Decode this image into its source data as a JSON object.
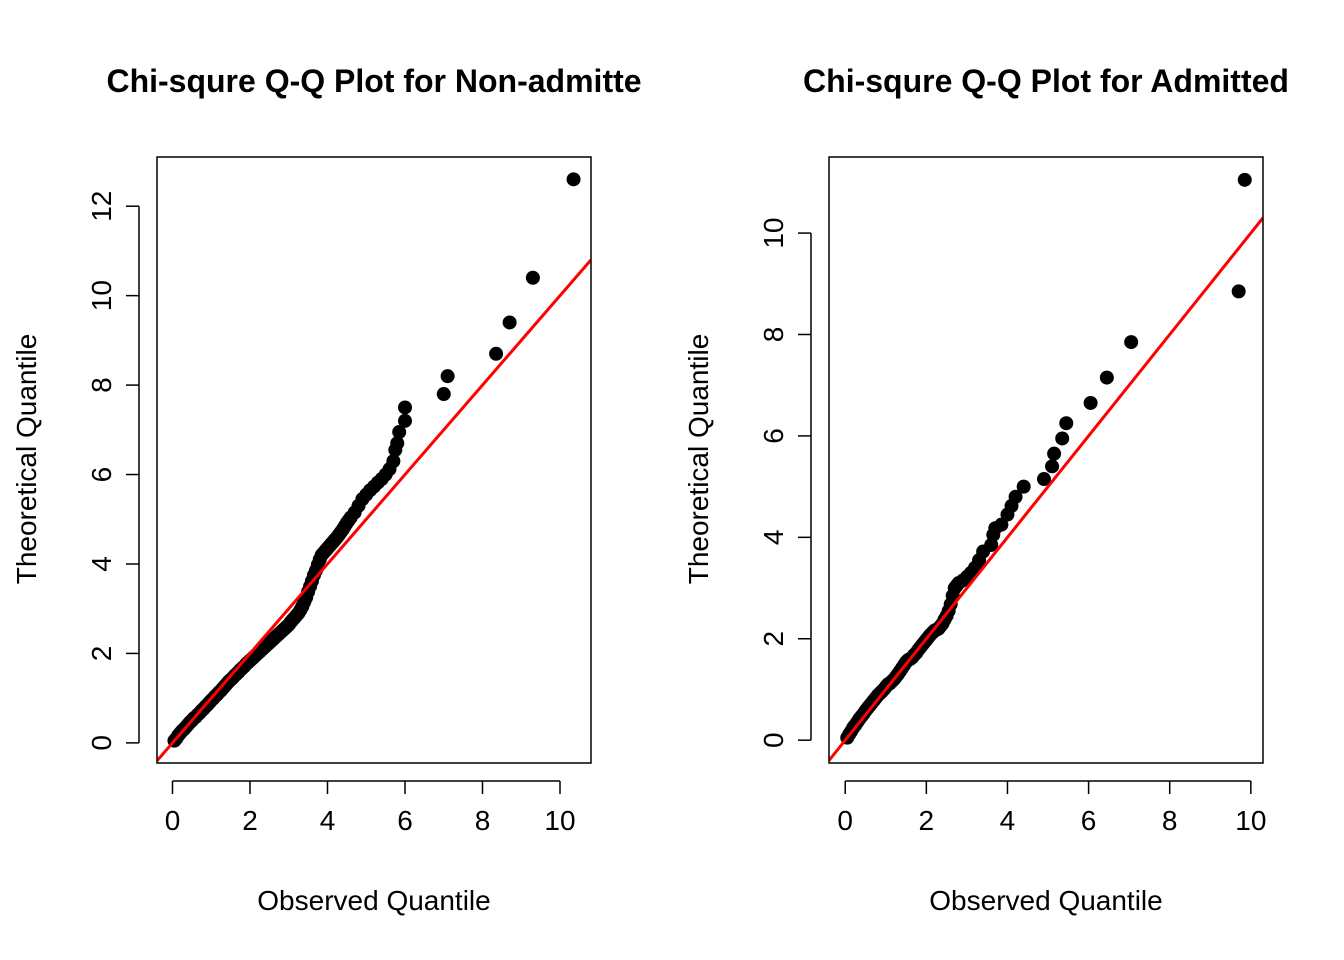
{
  "colors": {
    "points": "#000000",
    "ref_line": "#ff0000",
    "frame": "#000000",
    "background": "#ffffff"
  },
  "chart_data": [
    {
      "type": "scatter",
      "title": "Chi-squre Q-Q Plot for Non-admitte",
      "xlabel": "Observed Quantile",
      "ylabel": "Theoretical Quantile",
      "xlim": [
        -0.4,
        10.8
      ],
      "ylim": [
        -0.45,
        13.1
      ],
      "xticks": [
        0,
        2,
        4,
        6,
        8,
        10
      ],
      "yticks": [
        0,
        2,
        4,
        6,
        8,
        10,
        12
      ],
      "grid": false,
      "legend": "none",
      "reference_line": {
        "intercept": 0,
        "slope": 1,
        "color": "#ff0000"
      },
      "points": [
        [
          0.05,
          0.05
        ],
        [
          0.1,
          0.1
        ],
        [
          0.15,
          0.17
        ],
        [
          0.2,
          0.22
        ],
        [
          0.25,
          0.27
        ],
        [
          0.3,
          0.31
        ],
        [
          0.35,
          0.36
        ],
        [
          0.4,
          0.41
        ],
        [
          0.45,
          0.46
        ],
        [
          0.5,
          0.5
        ],
        [
          0.55,
          0.55
        ],
        [
          0.6,
          0.58
        ],
        [
          0.65,
          0.63
        ],
        [
          0.7,
          0.67
        ],
        [
          0.75,
          0.72
        ],
        [
          0.8,
          0.76
        ],
        [
          0.85,
          0.81
        ],
        [
          0.9,
          0.85
        ],
        [
          0.95,
          0.9
        ],
        [
          1.0,
          0.95
        ],
        [
          1.05,
          0.99
        ],
        [
          1.1,
          1.04
        ],
        [
          1.15,
          1.08
        ],
        [
          1.2,
          1.13
        ],
        [
          1.25,
          1.17
        ],
        [
          1.3,
          1.22
        ],
        [
          1.35,
          1.27
        ],
        [
          1.4,
          1.32
        ],
        [
          1.45,
          1.37
        ],
        [
          1.5,
          1.41
        ],
        [
          1.55,
          1.45
        ],
        [
          1.6,
          1.5
        ],
        [
          1.65,
          1.54
        ],
        [
          1.7,
          1.58
        ],
        [
          1.75,
          1.63
        ],
        [
          1.8,
          1.67
        ],
        [
          1.85,
          1.71
        ],
        [
          1.9,
          1.76
        ],
        [
          1.95,
          1.8
        ],
        [
          2.0,
          1.84
        ],
        [
          2.05,
          1.88
        ],
        [
          2.1,
          1.92
        ],
        [
          2.15,
          1.96
        ],
        [
          2.2,
          2.0
        ],
        [
          2.25,
          2.04
        ],
        [
          2.3,
          2.08
        ],
        [
          2.35,
          2.12
        ],
        [
          2.4,
          2.16
        ],
        [
          2.45,
          2.2
        ],
        [
          2.5,
          2.24
        ],
        [
          2.55,
          2.28
        ],
        [
          2.6,
          2.32
        ],
        [
          2.65,
          2.36
        ],
        [
          2.7,
          2.4
        ],
        [
          2.75,
          2.44
        ],
        [
          2.8,
          2.48
        ],
        [
          2.85,
          2.52
        ],
        [
          2.9,
          2.56
        ],
        [
          2.95,
          2.6
        ],
        [
          3.0,
          2.64
        ],
        [
          3.05,
          2.7
        ],
        [
          3.1,
          2.75
        ],
        [
          3.15,
          2.8
        ],
        [
          3.2,
          2.85
        ],
        [
          3.25,
          2.9
        ],
        [
          3.3,
          2.97
        ],
        [
          3.35,
          3.05
        ],
        [
          3.4,
          3.15
        ],
        [
          3.45,
          3.25
        ],
        [
          3.5,
          3.38
        ],
        [
          3.55,
          3.5
        ],
        [
          3.6,
          3.62
        ],
        [
          3.65,
          3.75
        ],
        [
          3.7,
          3.85
        ],
        [
          3.75,
          3.98
        ],
        [
          3.8,
          4.1
        ],
        [
          3.85,
          4.2
        ],
        [
          3.9,
          4.25
        ],
        [
          3.95,
          4.3
        ],
        [
          4.0,
          4.35
        ],
        [
          4.05,
          4.4
        ],
        [
          4.1,
          4.45
        ],
        [
          4.15,
          4.5
        ],
        [
          4.2,
          4.55
        ],
        [
          4.25,
          4.6
        ],
        [
          4.3,
          4.66
        ],
        [
          4.35,
          4.72
        ],
        [
          4.4,
          4.78
        ],
        [
          4.45,
          4.85
        ],
        [
          4.5,
          4.92
        ],
        [
          4.55,
          4.98
        ],
        [
          4.6,
          5.04
        ],
        [
          4.7,
          5.15
        ],
        [
          4.8,
          5.3
        ],
        [
          4.9,
          5.45
        ],
        [
          5.0,
          5.55
        ],
        [
          5.1,
          5.65
        ],
        [
          5.2,
          5.73
        ],
        [
          5.3,
          5.82
        ],
        [
          5.4,
          5.9
        ],
        [
          5.5,
          6.0
        ],
        [
          5.6,
          6.12
        ],
        [
          5.7,
          6.3
        ],
        [
          5.75,
          6.55
        ],
        [
          5.8,
          6.7
        ],
        [
          5.85,
          6.95
        ],
        [
          6.0,
          7.2
        ],
        [
          6.0,
          7.5
        ],
        [
          7.0,
          7.8
        ],
        [
          7.1,
          8.2
        ],
        [
          8.35,
          8.7
        ],
        [
          8.7,
          9.4
        ],
        [
          9.3,
          10.4
        ],
        [
          10.35,
          12.6
        ]
      ]
    },
    {
      "type": "scatter",
      "title": "Chi-squre Q-Q Plot for Admitted",
      "xlabel": "Observed Quantile",
      "ylabel": "Theoretical Quantile",
      "xlim": [
        -0.4,
        10.3
      ],
      "ylim": [
        -0.45,
        11.5
      ],
      "xticks": [
        0,
        2,
        4,
        6,
        8,
        10
      ],
      "yticks": [
        0,
        2,
        4,
        6,
        8,
        10
      ],
      "grid": false,
      "legend": "none",
      "reference_line": {
        "intercept": 0,
        "slope": 1,
        "color": "#ff0000"
      },
      "points": [
        [
          0.05,
          0.05
        ],
        [
          0.1,
          0.12
        ],
        [
          0.15,
          0.18
        ],
        [
          0.2,
          0.25
        ],
        [
          0.25,
          0.3
        ],
        [
          0.3,
          0.36
        ],
        [
          0.35,
          0.42
        ],
        [
          0.4,
          0.47
        ],
        [
          0.45,
          0.52
        ],
        [
          0.5,
          0.58
        ],
        [
          0.55,
          0.63
        ],
        [
          0.6,
          0.68
        ],
        [
          0.65,
          0.73
        ],
        [
          0.7,
          0.78
        ],
        [
          0.75,
          0.83
        ],
        [
          0.8,
          0.88
        ],
        [
          0.85,
          0.92
        ],
        [
          0.9,
          0.96
        ],
        [
          0.95,
          1.0
        ],
        [
          1.0,
          1.05
        ],
        [
          1.05,
          1.1
        ],
        [
          1.1,
          1.12
        ],
        [
          1.15,
          1.16
        ],
        [
          1.2,
          1.2
        ],
        [
          1.25,
          1.25
        ],
        [
          1.3,
          1.3
        ],
        [
          1.35,
          1.36
        ],
        [
          1.4,
          1.42
        ],
        [
          1.45,
          1.48
        ],
        [
          1.5,
          1.54
        ],
        [
          1.55,
          1.58
        ],
        [
          1.6,
          1.6
        ],
        [
          1.65,
          1.63
        ],
        [
          1.7,
          1.68
        ],
        [
          1.75,
          1.72
        ],
        [
          1.8,
          1.78
        ],
        [
          1.85,
          1.83
        ],
        [
          1.9,
          1.88
        ],
        [
          1.95,
          1.93
        ],
        [
          2.0,
          1.98
        ],
        [
          2.05,
          2.03
        ],
        [
          2.1,
          2.08
        ],
        [
          2.15,
          2.12
        ],
        [
          2.2,
          2.16
        ],
        [
          2.25,
          2.18
        ],
        [
          2.3,
          2.2
        ],
        [
          2.35,
          2.25
        ],
        [
          2.4,
          2.3
        ],
        [
          2.45,
          2.38
        ],
        [
          2.5,
          2.45
        ],
        [
          2.55,
          2.55
        ],
        [
          2.6,
          2.68
        ],
        [
          2.65,
          2.85
        ],
        [
          2.7,
          3.0
        ],
        [
          2.75,
          3.05
        ],
        [
          2.8,
          3.1
        ],
        [
          2.9,
          3.15
        ],
        [
          3.0,
          3.22
        ],
        [
          3.1,
          3.3
        ],
        [
          3.2,
          3.4
        ],
        [
          3.3,
          3.55
        ],
        [
          3.4,
          3.72
        ],
        [
          3.6,
          3.85
        ],
        [
          3.65,
          4.05
        ],
        [
          3.7,
          4.18
        ],
        [
          3.85,
          4.25
        ],
        [
          4.0,
          4.45
        ],
        [
          4.1,
          4.62
        ],
        [
          4.2,
          4.8
        ],
        [
          4.4,
          5.0
        ],
        [
          4.9,
          5.15
        ],
        [
          5.1,
          5.4
        ],
        [
          5.15,
          5.65
        ],
        [
          5.35,
          5.95
        ],
        [
          5.45,
          6.25
        ],
        [
          6.05,
          6.65
        ],
        [
          6.45,
          7.15
        ],
        [
          7.05,
          7.85
        ],
        [
          9.7,
          8.85
        ],
        [
          9.85,
          11.05
        ]
      ]
    }
  ]
}
